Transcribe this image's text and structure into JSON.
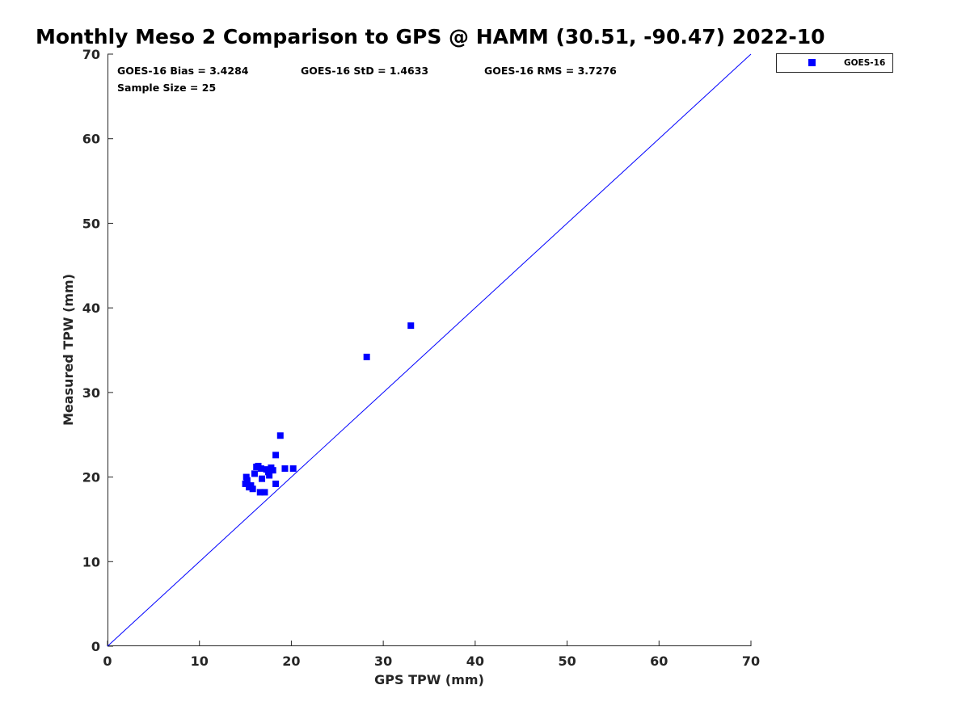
{
  "chart_data": {
    "type": "scatter",
    "title": "Monthly Meso 2 Comparison to GPS @ HAMM (30.51, -90.47) 2022-10",
    "xlabel": "GPS TPW (mm)",
    "ylabel": "Measured TPW (mm)",
    "xlim": [
      0,
      70
    ],
    "ylim": [
      0,
      70
    ],
    "xticks": [
      "0",
      "10",
      "20",
      "30",
      "40",
      "50",
      "60",
      "70"
    ],
    "yticks": [
      "0",
      "10",
      "20",
      "30",
      "40",
      "50",
      "60",
      "70"
    ],
    "grid": false,
    "legend_position": "outside-top-right",
    "stats": {
      "bias": "GOES-16 Bias = 3.4284",
      "std": "GOES-16 StD = 1.4633",
      "rms": "GOES-16 RMS = 3.7276",
      "sample_size": "Sample Size = 25"
    },
    "reference_line": {
      "x": [
        0,
        70
      ],
      "y": [
        0,
        70
      ],
      "color": "#0000ff"
    },
    "series": [
      {
        "name": "GOES-16",
        "color": "#0000ff",
        "marker": "square",
        "points": [
          [
            15.0,
            19.2
          ],
          [
            15.1,
            20.0
          ],
          [
            15.2,
            19.6
          ],
          [
            15.4,
            18.8
          ],
          [
            15.8,
            18.6
          ],
          [
            16.0,
            20.4
          ],
          [
            16.4,
            21.3
          ],
          [
            16.6,
            18.2
          ],
          [
            16.8,
            19.8
          ],
          [
            17.1,
            18.2
          ],
          [
            16.7,
            21.0
          ],
          [
            17.5,
            20.6
          ],
          [
            17.8,
            21.1
          ],
          [
            17.6,
            20.2
          ],
          [
            18.0,
            20.8
          ],
          [
            18.3,
            19.2
          ],
          [
            18.3,
            22.6
          ],
          [
            18.8,
            24.9
          ],
          [
            19.3,
            21.0
          ],
          [
            20.2,
            21.0
          ],
          [
            17.3,
            20.9
          ],
          [
            16.2,
            21.2
          ],
          [
            15.6,
            19.0
          ],
          [
            28.2,
            34.2
          ],
          [
            33.0,
            37.9
          ]
        ]
      }
    ]
  }
}
